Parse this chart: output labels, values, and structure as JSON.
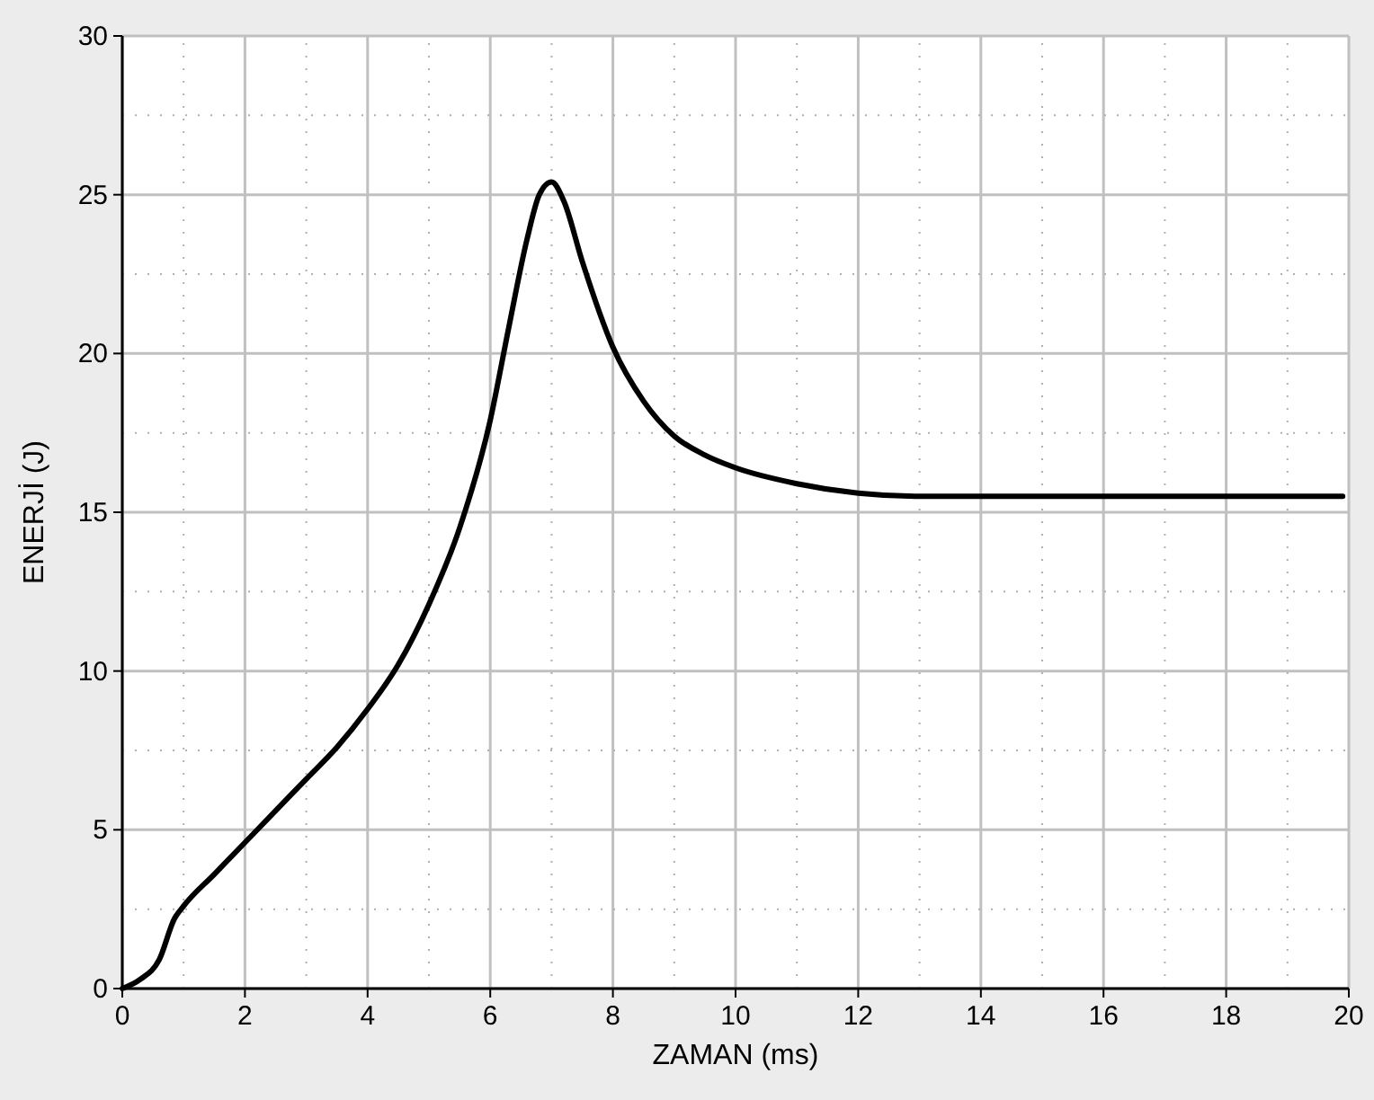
{
  "chart_data": {
    "type": "line",
    "xlabel": "ZAMAN (ms)",
    "ylabel": "ENERJİ (J)",
    "xlim": [
      0,
      20
    ],
    "ylim": [
      0,
      30
    ],
    "xticks": [
      0,
      {
        "value": 1,
        "label": null
      },
      2,
      {
        "value": 3,
        "label": null
      },
      4,
      {
        "value": 5,
        "label": null
      },
      6,
      {
        "value": 7,
        "label": null
      },
      8,
      {
        "value": 9,
        "label": null
      },
      10,
      {
        "value": 11,
        "label": null
      },
      12,
      {
        "value": 13,
        "label": null
      },
      14,
      {
        "value": 15,
        "label": null
      },
      16,
      {
        "value": 17,
        "label": null
      },
      18,
      {
        "value": 19,
        "label": null
      },
      20
    ],
    "yticks": [
      0,
      {
        "value": 2.5,
        "label": null
      },
      5,
      {
        "value": 7.5,
        "label": null
      },
      10,
      {
        "value": 12.5,
        "label": null
      },
      15,
      {
        "value": 17.5,
        "label": null
      },
      20,
      {
        "value": 22.5,
        "label": null
      },
      25,
      {
        "value": 27.5,
        "label": null
      },
      30
    ],
    "grid": true,
    "marker": "none",
    "line_style": "solid",
    "series": [
      {
        "color": "#000000",
        "x": [
          0,
          0.3,
          0.6,
          0.85,
          1,
          1.5,
          2,
          2.5,
          3,
          3.5,
          4,
          4.5,
          5,
          5.5,
          6,
          6.3,
          6.6,
          6.8,
          7,
          7.2,
          7.5,
          8,
          8.5,
          9,
          9.5,
          10,
          11,
          12,
          13,
          14,
          16,
          18,
          19.9
        ],
        "values": [
          0,
          0.3,
          0.9,
          2.2,
          2.6,
          3.6,
          4.6,
          5.6,
          6.6,
          7.6,
          8.8,
          10.2,
          12.1,
          14.5,
          17.9,
          20.8,
          23.6,
          25,
          25.4,
          24.8,
          22.9,
          20.2,
          18.5,
          17.4,
          16.8,
          16.4,
          15.9,
          15.6,
          15.5,
          15.5,
          15.5,
          15.5,
          15.5
        ]
      }
    ]
  }
}
